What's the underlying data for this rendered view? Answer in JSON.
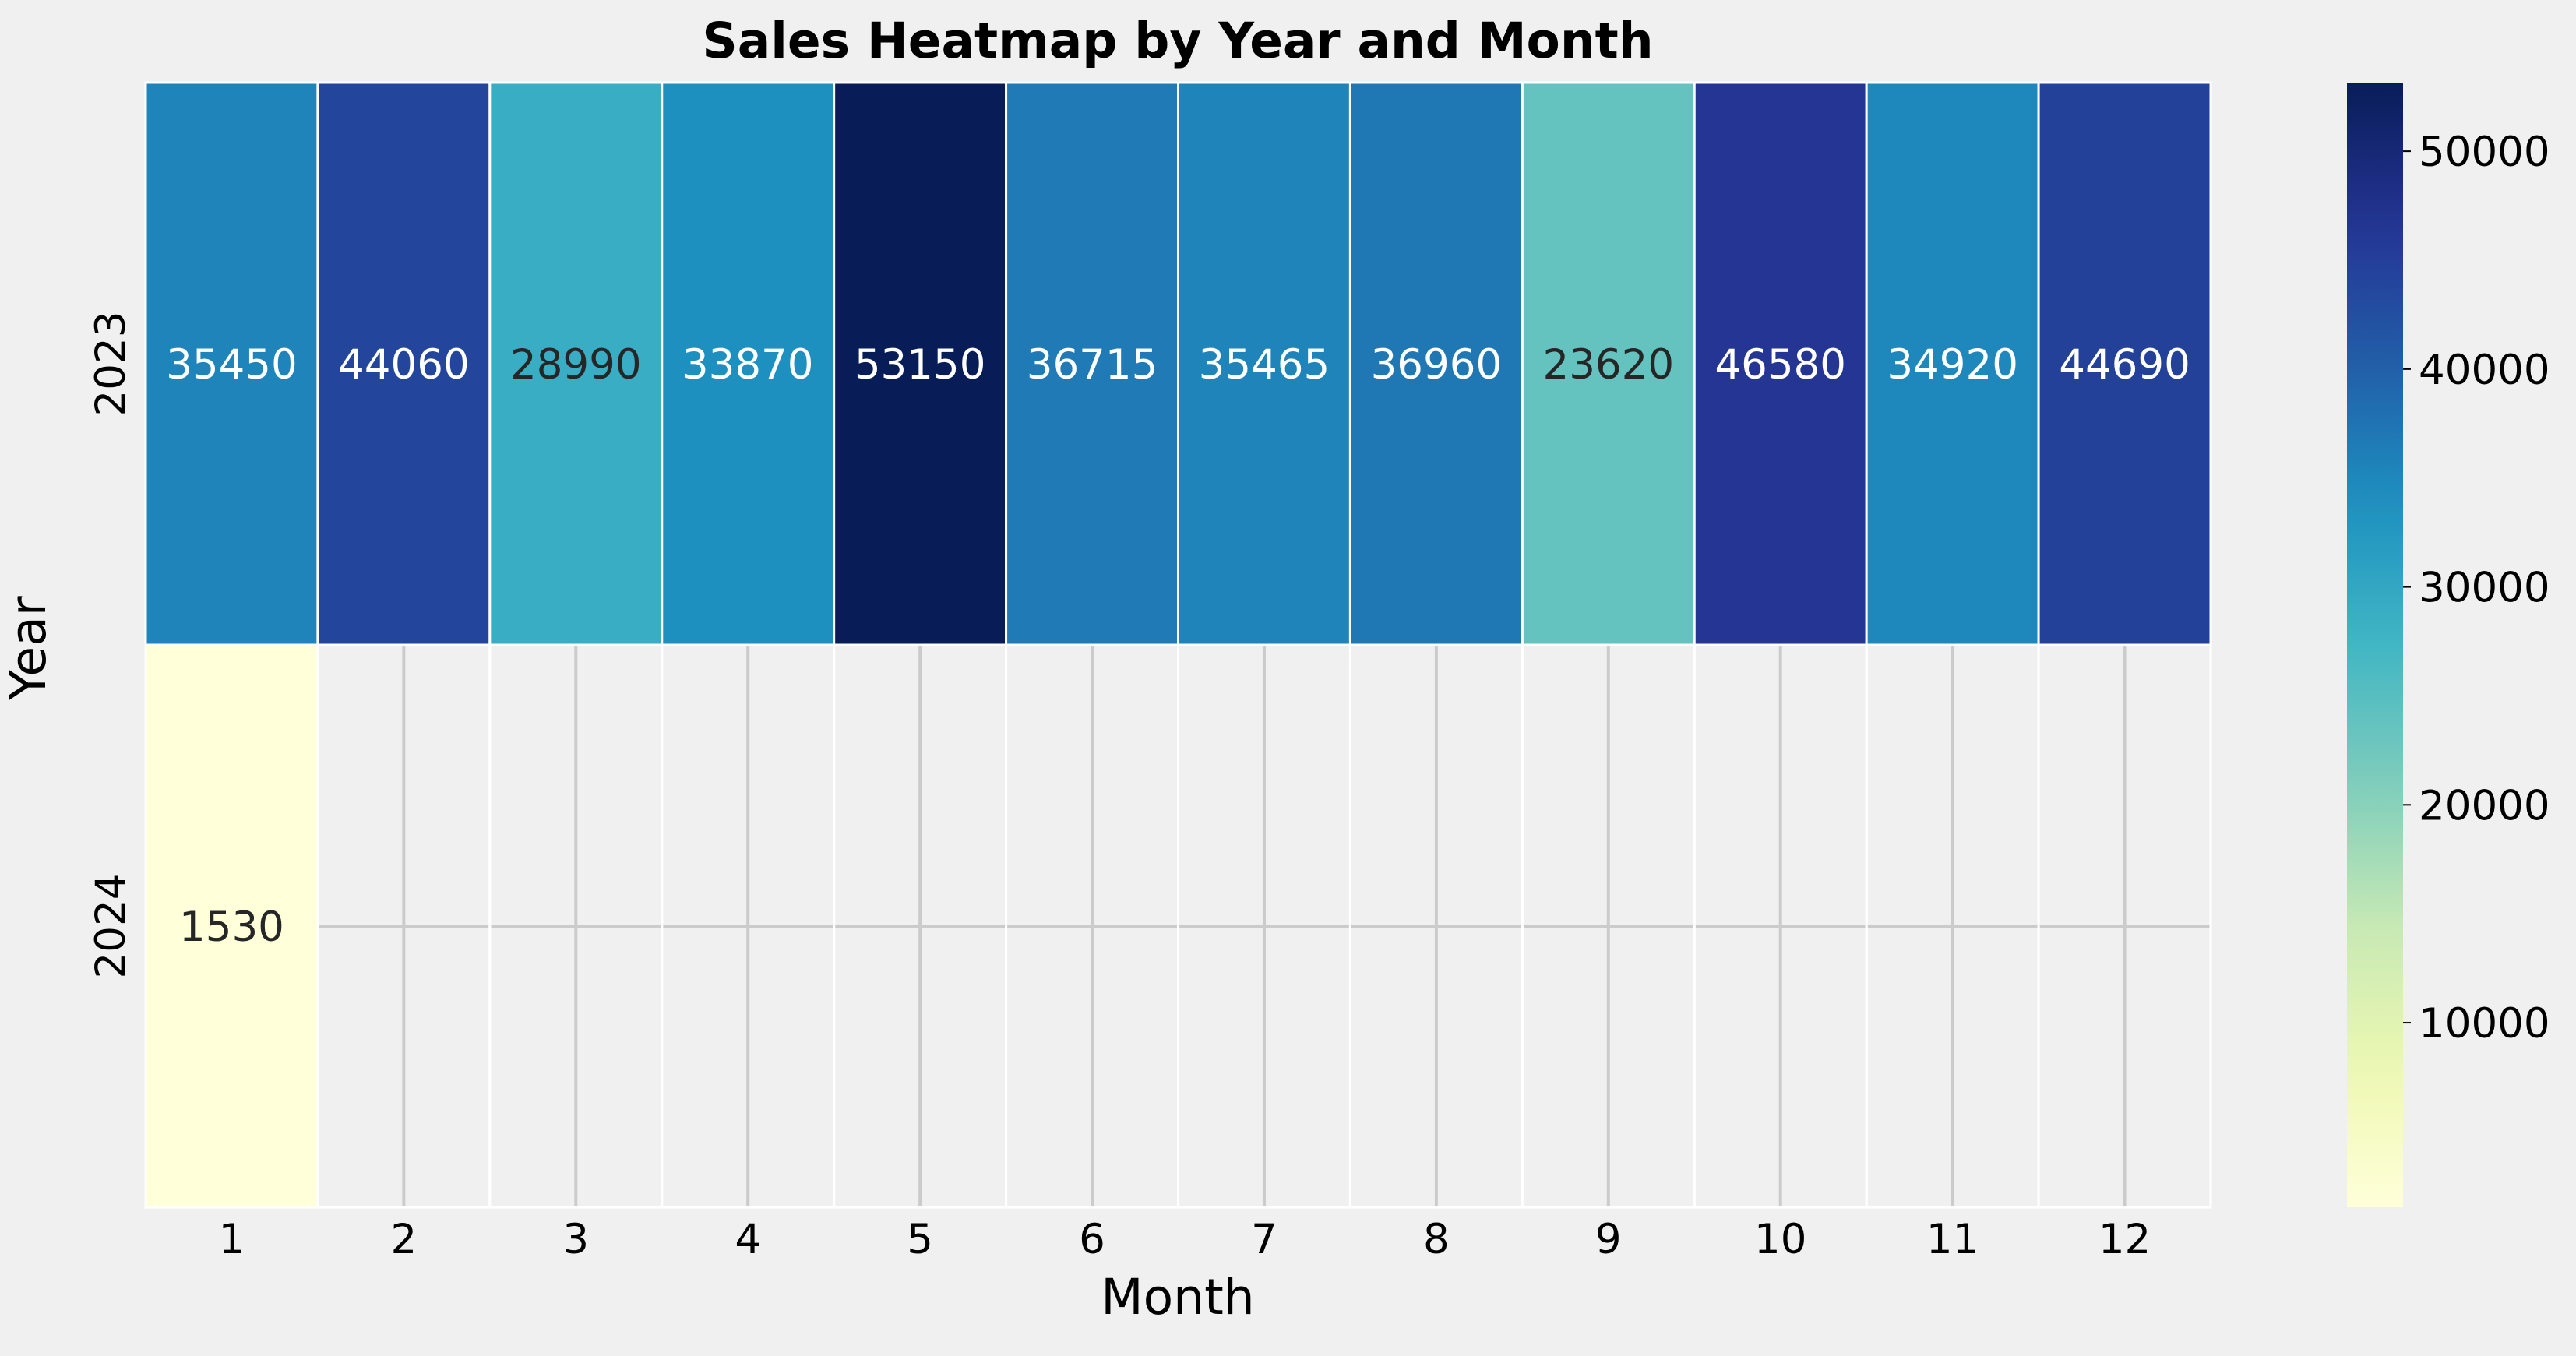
{
  "chart_data": {
    "type": "heatmap",
    "title": "Sales Heatmap by Year and Month",
    "xlabel": "Month",
    "ylabel": "Year",
    "x_categories": [
      "1",
      "2",
      "3",
      "4",
      "5",
      "6",
      "7",
      "8",
      "9",
      "10",
      "11",
      "12"
    ],
    "y_categories": [
      "2023",
      "2024"
    ],
    "values": [
      [
        35450,
        44060,
        28990,
        33870,
        53150,
        36715,
        35465,
        36960,
        23620,
        46580,
        34920,
        44690
      ],
      [
        1530,
        null,
        null,
        null,
        null,
        null,
        null,
        null,
        null,
        null,
        null,
        null
      ]
    ],
    "colormap": "YlGnBu",
    "value_range": [
      1530,
      53150
    ],
    "colorbar_ticks": [
      10000,
      20000,
      30000,
      40000,
      50000
    ],
    "grid": true,
    "colors": {
      "background": "#f0f0f0",
      "grid": "#cbcbcb",
      "cell_border": "#ffffff",
      "text_dark": "#262626",
      "text_light": "#ffffff"
    }
  }
}
